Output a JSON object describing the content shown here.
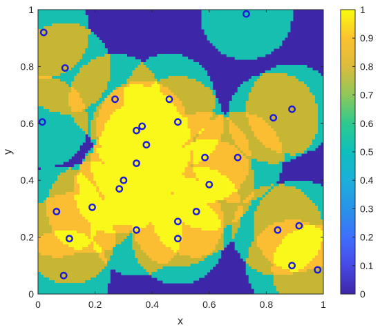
{
  "chart_data": {
    "type": "heatmap",
    "title": "",
    "xlabel": "x",
    "ylabel": "y",
    "xlim": [
      0,
      1
    ],
    "ylim": [
      0,
      1
    ],
    "xticks": [
      "0",
      "0.2",
      "0.4",
      "0.6",
      "0.8",
      "1"
    ],
    "yticks": [
      "0",
      "0.2",
      "0.4",
      "0.6",
      "0.8",
      "1"
    ],
    "colorbar": {
      "range": [
        0,
        1
      ],
      "ticks": [
        "0",
        "0.1",
        "0.2",
        "0.3",
        "0.4",
        "0.5",
        "0.6",
        "0.7",
        "0.8",
        "0.9",
        "1"
      ]
    },
    "grid": false,
    "background_value": 0,
    "coverage_radius": 0.16,
    "points": [
      {
        "x": 0.02,
        "y": 0.92
      },
      {
        "x": 0.73,
        "y": 0.985
      },
      {
        "x": 0.095,
        "y": 0.795
      },
      {
        "x": 0.015,
        "y": 0.605
      },
      {
        "x": 0.27,
        "y": 0.685
      },
      {
        "x": 0.46,
        "y": 0.685
      },
      {
        "x": 0.825,
        "y": 0.62
      },
      {
        "x": 0.89,
        "y": 0.65
      },
      {
        "x": 0.345,
        "y": 0.575
      },
      {
        "x": 0.365,
        "y": 0.59
      },
      {
        "x": 0.49,
        "y": 0.605
      },
      {
        "x": 0.38,
        "y": 0.525
      },
      {
        "x": 0.585,
        "y": 0.48
      },
      {
        "x": 0.7,
        "y": 0.48
      },
      {
        "x": 0.345,
        "y": 0.46
      },
      {
        "x": 0.3,
        "y": 0.4
      },
      {
        "x": 0.285,
        "y": 0.37
      },
      {
        "x": 0.6,
        "y": 0.385
      },
      {
        "x": 0.065,
        "y": 0.29
      },
      {
        "x": 0.19,
        "y": 0.305
      },
      {
        "x": 0.555,
        "y": 0.29
      },
      {
        "x": 0.49,
        "y": 0.255
      },
      {
        "x": 0.345,
        "y": 0.225
      },
      {
        "x": 0.49,
        "y": 0.195
      },
      {
        "x": 0.11,
        "y": 0.195
      },
      {
        "x": 0.84,
        "y": 0.225
      },
      {
        "x": 0.915,
        "y": 0.24
      },
      {
        "x": 0.09,
        "y": 0.065
      },
      {
        "x": 0.89,
        "y": 0.1
      },
      {
        "x": 0.98,
        "y": 0.085
      }
    ]
  },
  "colors": {
    "background": "#3e26a8",
    "level1": "#17bfb1",
    "level2": "#c6b634",
    "level3": "#fbbd32",
    "level4": "#f9f81a",
    "marker": "#1c1bd9",
    "axis": "#262626"
  }
}
